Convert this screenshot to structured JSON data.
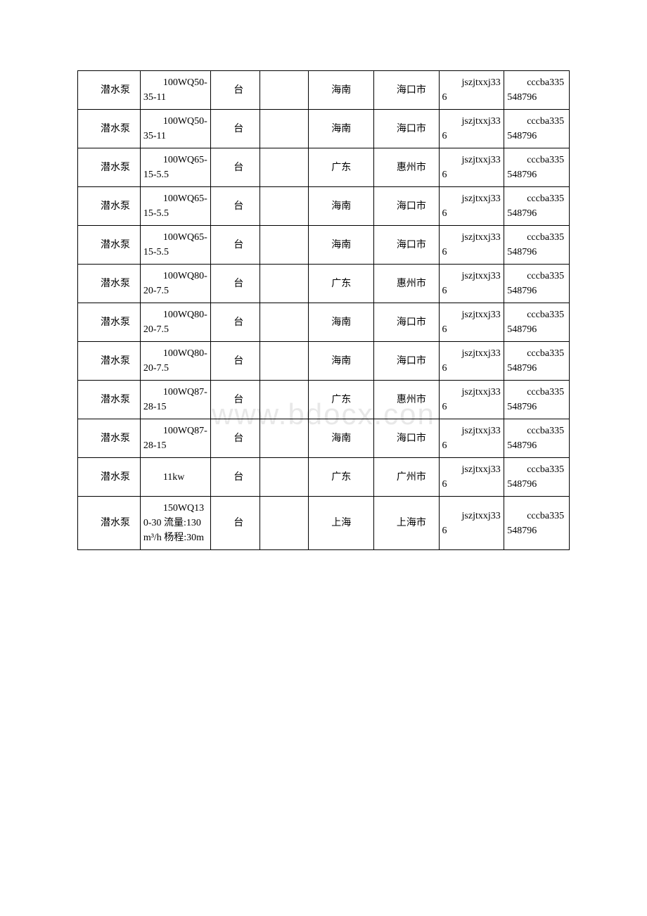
{
  "watermark": "www.bdocx.con",
  "table": {
    "border_color": "#000000",
    "background_color": "#ffffff",
    "font_size": 14,
    "watermark_color": "#e8e8e8",
    "text_color": "#000000",
    "columns": [
      {
        "width_pct": 11.5
      },
      {
        "width_pct": 13
      },
      {
        "width_pct": 9
      },
      {
        "width_pct": 9
      },
      {
        "width_pct": 12
      },
      {
        "width_pct": 12
      },
      {
        "width_pct": 12
      },
      {
        "width_pct": 12
      }
    ],
    "rows": [
      {
        "c1": "潜水泵",
        "c2": "100WQ50-35-11",
        "c3": "台",
        "c4": "",
        "c5": "海南",
        "c6": "海口市",
        "c7": "jszjtxxj336",
        "c8": "cccba335548796"
      },
      {
        "c1": "潜水泵",
        "c2": "100WQ50-35-11",
        "c3": "台",
        "c4": "",
        "c5": "海南",
        "c6": "海口市",
        "c7": "jszjtxxj336",
        "c8": "cccba335548796"
      },
      {
        "c1": "潜水泵",
        "c2": "100WQ65-15-5.5",
        "c3": "台",
        "c4": "",
        "c5": "广东",
        "c6": "惠州市",
        "c7": "jszjtxxj336",
        "c8": "cccba335548796"
      },
      {
        "c1": "潜水泵",
        "c2": "100WQ65-15-5.5",
        "c3": "台",
        "c4": "",
        "c5": "海南",
        "c6": "海口市",
        "c7": "jszjtxxj336",
        "c8": "cccba335548796"
      },
      {
        "c1": "潜水泵",
        "c2": "100WQ65-15-5.5",
        "c3": "台",
        "c4": "",
        "c5": "海南",
        "c6": "海口市",
        "c7": "jszjtxxj336",
        "c8": "cccba335548796"
      },
      {
        "c1": "潜水泵",
        "c2": "100WQ80-20-7.5",
        "c3": "台",
        "c4": "",
        "c5": "广东",
        "c6": "惠州市",
        "c7": "jszjtxxj336",
        "c8": "cccba335548796"
      },
      {
        "c1": "潜水泵",
        "c2": "100WQ80-20-7.5",
        "c3": "台",
        "c4": "",
        "c5": "海南",
        "c6": "海口市",
        "c7": "jszjtxxj336",
        "c8": "cccba335548796"
      },
      {
        "c1": "潜水泵",
        "c2": "100WQ80-20-7.5",
        "c3": "台",
        "c4": "",
        "c5": "海南",
        "c6": "海口市",
        "c7": "jszjtxxj336",
        "c8": "cccba335548796"
      },
      {
        "c1": "潜水泵",
        "c2": "100WQ87-28-15",
        "c3": "台",
        "c4": "",
        "c5": "广东",
        "c6": "惠州市",
        "c7": "jszjtxxj336",
        "c8": "cccba335548796"
      },
      {
        "c1": "潜水泵",
        "c2": "100WQ87-28-15",
        "c3": "台",
        "c4": "",
        "c5": "海南",
        "c6": "海口市",
        "c7": "jszjtxxj336",
        "c8": "cccba335548796"
      },
      {
        "c1": "潜水泵",
        "c2": "11kw",
        "c3": "台",
        "c4": "",
        "c5": "广东",
        "c6": "广州市",
        "c7": "jszjtxxj336",
        "c8": "cccba335548796"
      },
      {
        "c1": "潜水泵",
        "c2": "150WQ130-30 流量:130m³/h 杨程:30m",
        "c3": "台",
        "c4": "",
        "c5": "上海",
        "c6": "上海市",
        "c7": "jszjtxxj336",
        "c8": "cccba335548796"
      }
    ]
  }
}
